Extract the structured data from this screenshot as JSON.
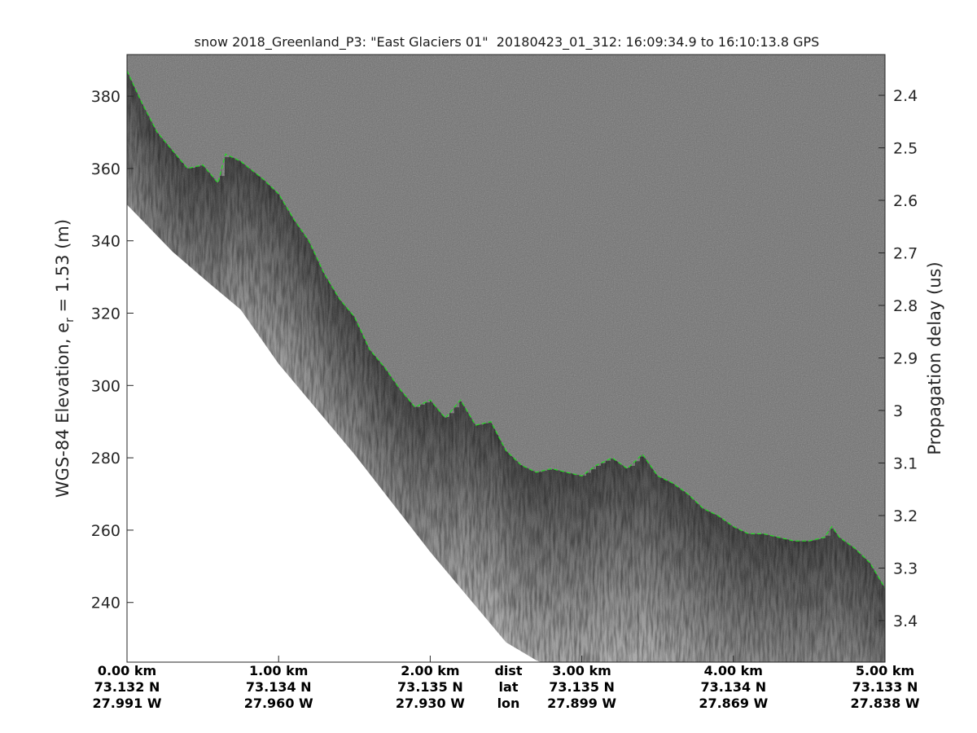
{
  "title": "snow 2018_Greenland_P3: \"East Glaciers 01\"  20180423_01_312: 16:09:34.9 to 16:10:13.8 GPS",
  "chart_data": {
    "type": "radar-echogram",
    "left_axis": {
      "label_main": "WGS-84 Elevation, e",
      "label_sub": "r",
      "label_tail": " = 1.53 (m)",
      "ticks": [
        380,
        360,
        340,
        320,
        300,
        280,
        260,
        240
      ],
      "range": [
        223.5,
        391.5
      ]
    },
    "right_axis": {
      "label": "Propagation delay (us)",
      "ticks": [
        "2.4",
        "2.5",
        "2.6",
        "2.7",
        "2.8",
        "2.9",
        "3",
        "3.1",
        "3.2",
        "3.3",
        "3.4"
      ],
      "tick_values": [
        2.4,
        2.5,
        2.6,
        2.7,
        2.8,
        2.9,
        3.0,
        3.1,
        3.2,
        3.3,
        3.4
      ]
    },
    "x_axis": {
      "range_km": [
        0,
        5
      ],
      "columns": [
        {
          "km": 0,
          "dist": "0.00 km",
          "lat": "73.132 N",
          "lon": "27.991 W"
        },
        {
          "km": 1,
          "dist": "1.00 km",
          "lat": "73.134 N",
          "lon": "27.960 W"
        },
        {
          "km": 2,
          "dist": "2.00 km",
          "lat": "73.135 N",
          "lon": "27.930 W"
        },
        {
          "km": 3,
          "dist": "3.00 km",
          "lat": "73.135 N",
          "lon": "27.899 W"
        },
        {
          "km": 4,
          "dist": "4.00 km",
          "lat": "73.134 N",
          "lon": "27.869 W"
        },
        {
          "km": 5,
          "dist": "5.00 km",
          "lat": "73.133 N",
          "lon": "27.838 W"
        }
      ],
      "legend_labels": {
        "km": 2.5,
        "dist": "dist",
        "lat": "lat",
        "lon": "lon"
      }
    },
    "surface_layer": {
      "color": "#22dd22",
      "style": "dashed",
      "x_km": [
        0.0,
        0.1,
        0.2,
        0.3,
        0.4,
        0.5,
        0.6,
        0.65,
        0.75,
        0.9,
        1.0,
        1.1,
        1.2,
        1.3,
        1.4,
        1.5,
        1.6,
        1.7,
        1.8,
        1.9,
        2.0,
        2.1,
        2.2,
        2.3,
        2.4,
        2.5,
        2.6,
        2.7,
        2.8,
        2.9,
        3.0,
        3.1,
        3.2,
        3.3,
        3.4,
        3.5,
        3.6,
        3.7,
        3.8,
        3.9,
        4.0,
        4.1,
        4.2,
        4.3,
        4.4,
        4.5,
        4.6,
        4.65,
        4.7,
        4.8,
        4.9,
        5.0
      ],
      "elevation_m": [
        387,
        378,
        370,
        365,
        360,
        361,
        356,
        364,
        362,
        357,
        353,
        346,
        340,
        331,
        324,
        319,
        310,
        305,
        299,
        294,
        296,
        291,
        296,
        289,
        290,
        282,
        278,
        276,
        277,
        276,
        275,
        278,
        280,
        277,
        281,
        275,
        273,
        270,
        266,
        264,
        261,
        259,
        259,
        258,
        257,
        257,
        258,
        261,
        258,
        255,
        251,
        244
      ]
    },
    "no_data_boundary": {
      "x_km": [
        0.0,
        0.3,
        0.55,
        0.75,
        1.0,
        1.5,
        2.0,
        2.5,
        2.7,
        2.73
      ],
      "elevation_m": [
        350,
        337,
        328,
        321,
        306,
        281,
        254,
        229,
        224,
        223.5
      ]
    }
  }
}
